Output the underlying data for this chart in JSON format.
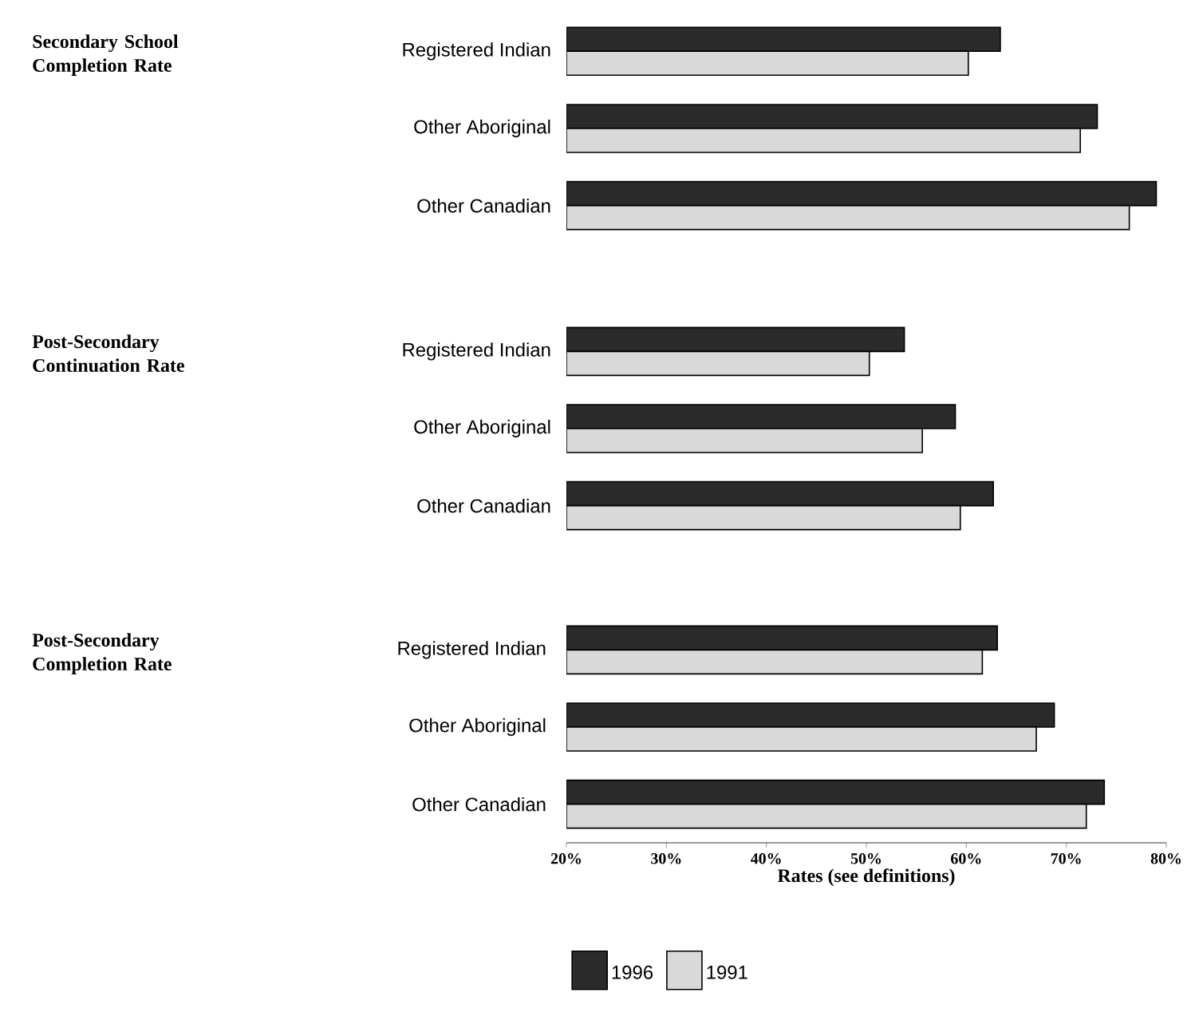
{
  "chart_data": [
    {
      "type": "bar",
      "orientation": "horizontal",
      "ylabel": "Secondary School Completion Rate",
      "categories": [
        "Registered Indian",
        "Other Aboriginal",
        "Other Canadian"
      ],
      "series": [
        {
          "color": "#2b2b2b",
          "values": [
            63.4,
            73.1,
            79.0
          ]
        },
        {
          "color": "#d9d9d9",
          "values": [
            60.2,
            71.4,
            76.3
          ]
        }
      ],
      "xlim": [
        20,
        80
      ],
      "tick_labels": "y"
    },
    {
      "type": "bar",
      "orientation": "horizontal",
      "ylabel": "Post-Secondary Continuation Rate",
      "categories": [
        "Registered Indian",
        "Other Aboriginal",
        "Other Canadian"
      ],
      "series": [
        {
          "color": "#2b2b2b",
          "values": [
            53.8,
            58.9,
            62.7
          ]
        },
        {
          "color": "#d9d9d9",
          "values": [
            50.3,
            55.6,
            59.4
          ]
        }
      ],
      "xlim": [
        20,
        80
      ],
      "tick_labels": "y"
    },
    {
      "type": "bar",
      "orientation": "horizontal",
      "ylabel": "Post-Secondary Completion Rate",
      "xlabel": "Rates (see definitions)",
      "categories": [
        "Registered Indian",
        "Other Aboriginal",
        "Other Canadian"
      ],
      "series": [
        {
          "name": "1996",
          "color": "#2b2b2b",
          "values": [
            63.1,
            68.8,
            73.8
          ]
        },
        {
          "name": "1991",
          "color": "#d9d9d9",
          "values": [
            61.6,
            67.0,
            72.0
          ]
        }
      ],
      "xlim": [
        20,
        80
      ],
      "xticks": [
        {
          "value": 20,
          "label": "20%"
        },
        {
          "value": 30,
          "label": "30%"
        },
        {
          "value": 40,
          "label": "40%"
        },
        {
          "value": 50,
          "label": "50%"
        },
        {
          "value": 60,
          "label": "60%"
        },
        {
          "value": 70,
          "label": "70%"
        },
        {
          "value": 80,
          "label": "80%"
        }
      ],
      "legend": "bottom"
    }
  ]
}
